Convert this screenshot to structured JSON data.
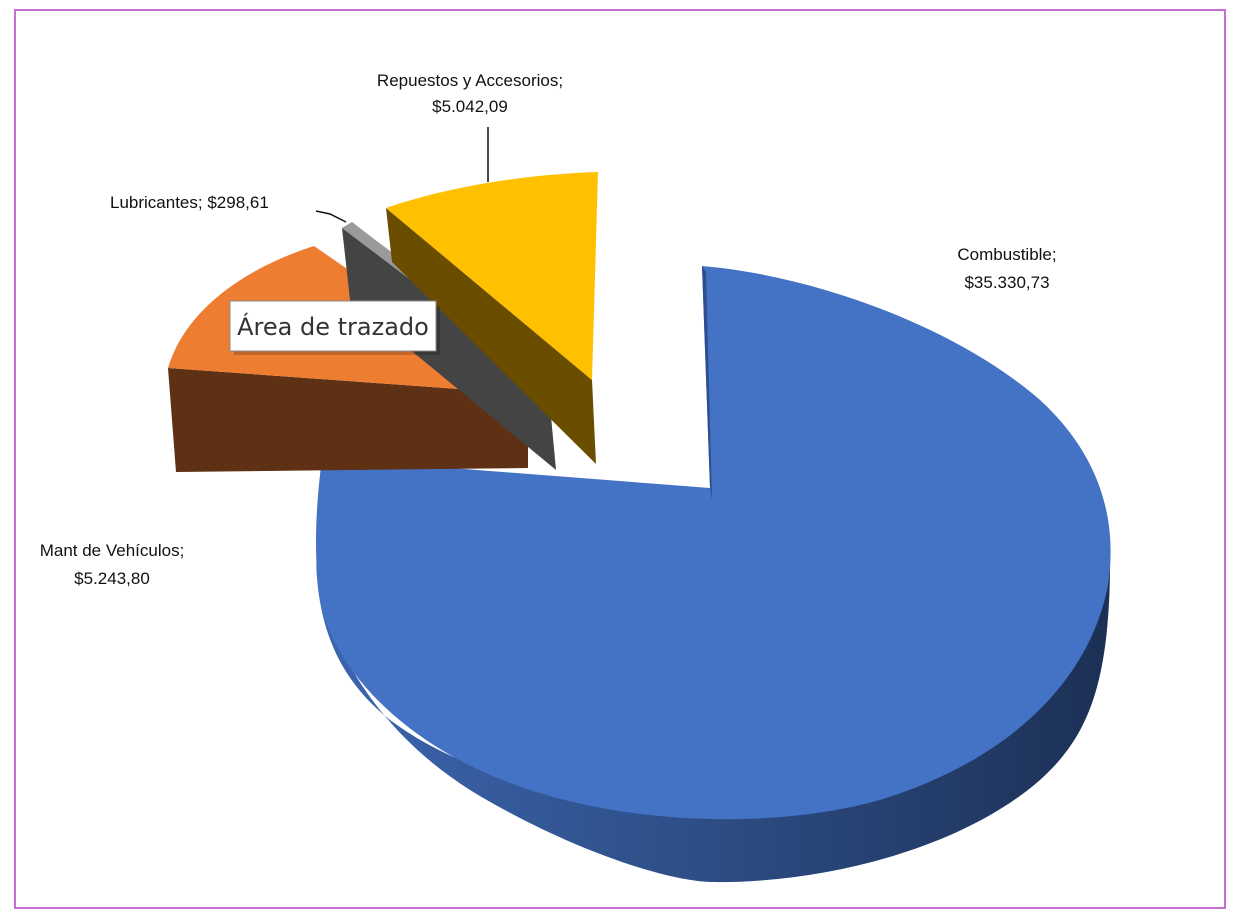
{
  "chart_data": {
    "type": "pie",
    "style": "3d-exploded",
    "slices": [
      {
        "label": "Combustible",
        "value": 35330.73,
        "display": "$35.330,73",
        "color": "#4472C4"
      },
      {
        "label": "Mant de Vehículos",
        "value": 5243.8,
        "display": "$5.243,80",
        "color": "#ED7D31"
      },
      {
        "label": "Lubricantes",
        "value": 298.61,
        "display": "$298,61",
        "color": "#5A5A5A"
      },
      {
        "label": "Repuestos y Accesorios",
        "value": 5042.09,
        "display": "$5.042,09",
        "color": "#FFC000"
      }
    ],
    "data_labels": [
      {
        "line1": "Combustible;",
        "line2": "$35.330,73"
      },
      {
        "line1": "Mant de Vehículos;",
        "line2": "$5.243,80"
      },
      {
        "line1": "Lubricantes;  $298,61",
        "line2": ""
      },
      {
        "line1": "Repuestos y Accesorios;",
        "line2": "$5.042,09"
      }
    ],
    "tooltip": "Área de trazado"
  }
}
